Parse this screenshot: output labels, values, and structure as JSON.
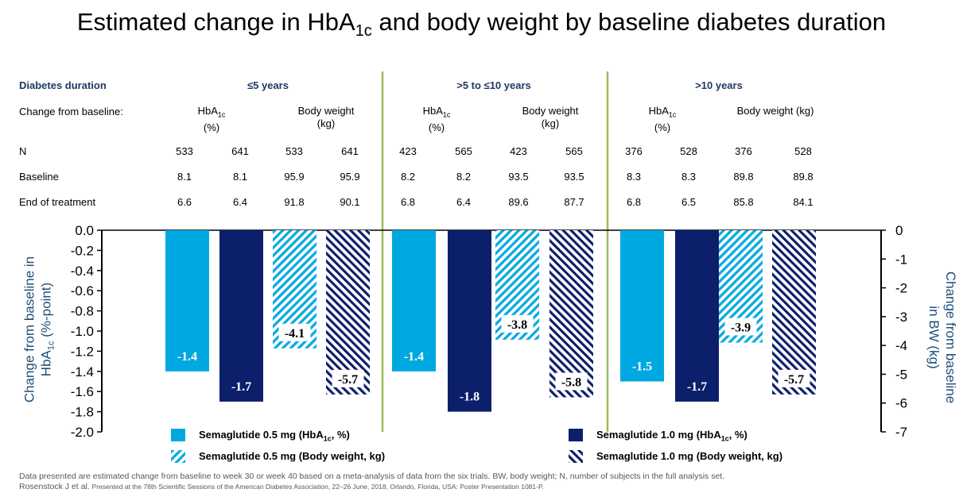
{
  "title_main": "Estimated change in HbA",
  "title_sub": "1c",
  "title_rest": " and body weight by baseline diabetes duration",
  "table": {
    "duration_label": "Diabetes duration",
    "change_label": "Change from baseline:",
    "n_label": "N",
    "baseline_label": "Baseline",
    "eot_label": "End of treatment",
    "groups": [
      {
        "name": "≤5 years",
        "hba1c_label": "HbA",
        "hba1c_sub": "1c",
        "hba1c_unit": "(%)",
        "bw_label": "Body weight",
        "bw_unit": "(kg)",
        "n": [
          "533",
          "641",
          "533",
          "641"
        ],
        "baseline": [
          "8.1",
          "8.1",
          "95.9",
          "95.9"
        ],
        "eot": [
          "6.6",
          "6.4",
          "91.8",
          "90.1"
        ]
      },
      {
        "name": ">5 to ≤10 years",
        "hba1c_label": "HbA",
        "hba1c_sub": "1c",
        "hba1c_unit": "(%)",
        "bw_label": "Body weight",
        "bw_unit": "(kg)",
        "n": [
          "423",
          "565",
          "423",
          "565"
        ],
        "baseline": [
          "8.2",
          "8.2",
          "93.5",
          "93.5"
        ],
        "eot": [
          "6.8",
          "6.4",
          "89.6",
          "87.7"
        ]
      },
      {
        "name": ">10 years",
        "hba1c_label": "HbA",
        "hba1c_sub": "1c",
        "hba1c_unit": "(%)",
        "bw_label": "Body weight (kg)",
        "bw_unit": "",
        "n": [
          "376",
          "528",
          "376",
          "528"
        ],
        "baseline": [
          "8.3",
          "8.3",
          "89.8",
          "89.8"
        ],
        "eot": [
          "6.8",
          "6.5",
          "85.8",
          "84.1"
        ]
      }
    ]
  },
  "chart_data": {
    "type": "bar",
    "categories": [
      "≤5 years",
      ">5 to ≤10 years",
      ">10 years"
    ],
    "series": [
      {
        "name": "Semaglutide 0.5 mg (HbA1c, %)",
        "axis": "left",
        "values": [
          -1.4,
          -1.4,
          -1.5
        ],
        "labels": [
          "-1.4",
          "-1.4",
          "-1.5"
        ],
        "color": "#00a8e1",
        "pattern": "solid"
      },
      {
        "name": "Semaglutide 1.0 mg (HbA1c, %)",
        "axis": "left",
        "values": [
          -1.7,
          -1.8,
          -1.7
        ],
        "labels": [
          "-1.7",
          "-1.8",
          "-1.7"
        ],
        "color": "#0c1f6b",
        "pattern": "solid"
      },
      {
        "name": "Semaglutide 0.5 mg (Body weight, kg)",
        "axis": "right",
        "values": [
          -4.1,
          -3.8,
          -3.9
        ],
        "labels": [
          "-4.1",
          "-3.8",
          "-3.9"
        ],
        "color": "#00a8e1",
        "pattern": "hatch"
      },
      {
        "name": "Semaglutide 1.0 mg (Body weight, kg)",
        "axis": "right",
        "values": [
          -5.7,
          -5.8,
          -5.7
        ],
        "labels": [
          "-5.7",
          "-5.8",
          "-5.7"
        ],
        "color": "#0c1f6b",
        "pattern": "hatch"
      }
    ],
    "ylabel_left_line1": "Change from baseline in",
    "ylabel_left_line2": "HbA",
    "ylabel_left_sub": "1c",
    "ylabel_left_rest": " (%-point)",
    "ylabel_right_line1": "Change from baseline",
    "ylabel_right_line2": "in BW (kg)",
    "ylim_left": [
      -2.0,
      0.0
    ],
    "yticks_left": [
      "0.0",
      "-0.2",
      "-0.4",
      "-0.6",
      "-0.8",
      "-1.0",
      "-1.2",
      "-1.4",
      "-1.6",
      "-1.8",
      "-2.0"
    ],
    "ylim_right": [
      -7,
      0
    ],
    "yticks_right": [
      "0",
      "-1",
      "-2",
      "-3",
      "-4",
      "-5",
      "-6",
      "-7"
    ],
    "separator_color": "#9bbb59",
    "grid": false
  },
  "legend": [
    {
      "text": "Semaglutide 0.5 mg (HbA",
      "sub": "1c",
      "rest": ", %)",
      "color": "#00a8e1",
      "pattern": "solid"
    },
    {
      "text": "Semaglutide 1.0 mg (HbA",
      "sub": "1c",
      "rest": ", %)",
      "color": "#0c1f6b",
      "pattern": "solid"
    },
    {
      "text": "Semaglutide 0.5 mg (Body weight, kg)",
      "sub": "",
      "rest": "",
      "color": "#00a8e1",
      "pattern": "hatch"
    },
    {
      "text": "Semaglutide 1.0 mg (Body weight, kg)",
      "sub": "",
      "rest": "",
      "color": "#0c1f6b",
      "pattern": "hatch"
    }
  ],
  "footer": {
    "line1": "Data presented are estimated change from baseline to week 30 or week 40 based on a meta-analysis of data from the six trials. BW, body weight; N, number of subjects in the full analysis set.",
    "line2_a": "Rosenstock J et al. ",
    "line2_b": "Presented at the 78th Scientific Sessions of the American Diabetes Association, 22–26 June, 2018, Orlando, Florida, USA: Poster Presentation 1081-P."
  }
}
